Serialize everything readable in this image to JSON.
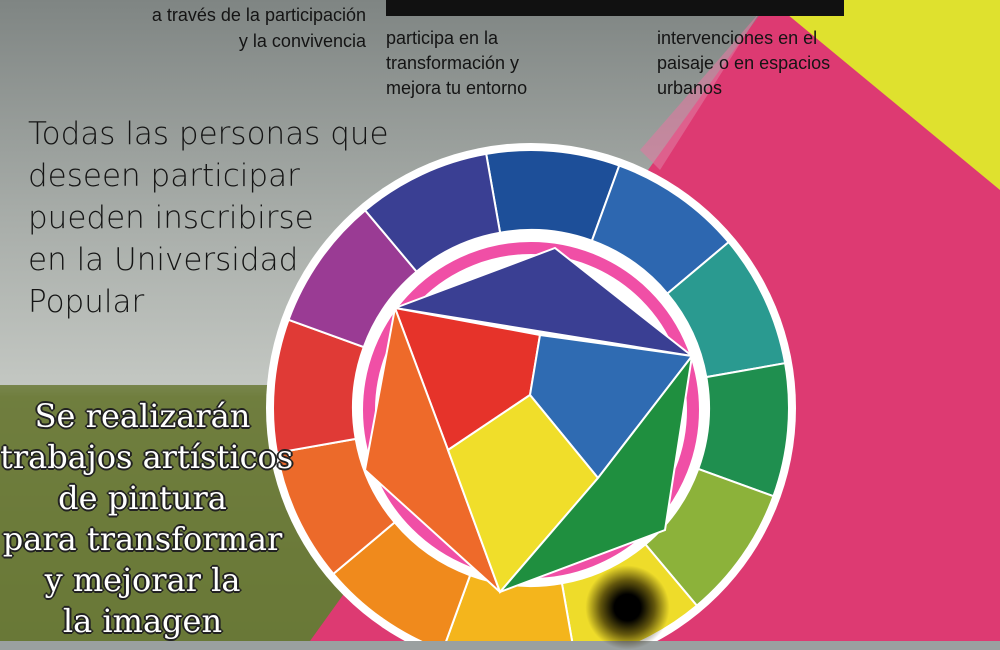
{
  "poster": {
    "top_left_lines": [
      "a través de la participación",
      "y la convivencia"
    ],
    "top_mid_lines": [
      "participa en la",
      "transformación y",
      "mejora tu entorno"
    ],
    "top_right_lines": [
      "intervenciones en el",
      "paisaje o en espacios",
      "urbanos"
    ],
    "intro_lines": [
      "Todas las personas que",
      "deseen participar",
      "pueden inscribirse",
      "en la Universidad",
      "Popular"
    ],
    "outlined_lines": [
      "Se realizarán",
      "trabajos artísticos",
      "de pintura",
      "para transformar",
      "y mejorar la",
      "la imagen"
    ]
  },
  "colors": {
    "magenta": "#dd3a72",
    "yellow": "#dfe12e",
    "wheel_ring_outline": "#f04fa6",
    "sky": "#9ea3a2",
    "field": "#6a7a3a"
  },
  "color_wheel": {
    "outer_segments": [
      "#1d4f99",
      "#2d67b0",
      "#2a9a90",
      "#1f8f4f",
      "#8cb23a",
      "#eedc2a",
      "#f4b51c",
      "#f08a1c",
      "#ec6a2a",
      "#e03a36",
      "#9a3b94",
      "#3a3f93"
    ],
    "triangle_colors": [
      "#3a3f93",
      "#e6332a",
      "#2f6bb2",
      "#ee6a2a",
      "#f0de2a",
      "#1f8f3f"
    ]
  }
}
